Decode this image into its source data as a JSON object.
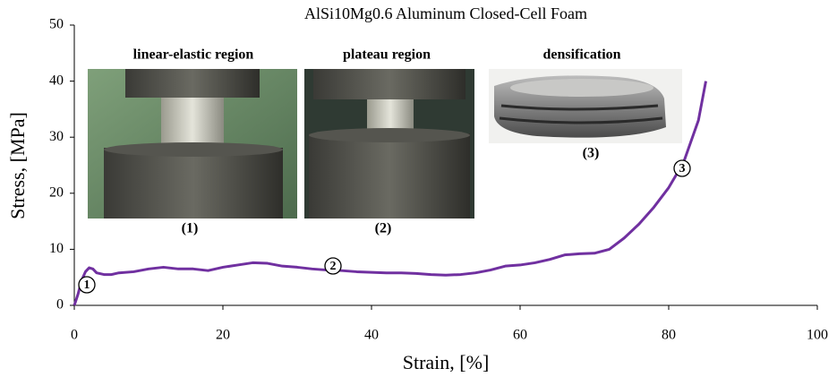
{
  "chart_data": {
    "type": "line",
    "title": "AlSi10Mg0.6 Aluminum Closed-Cell Foam",
    "xlabel": "Strain, [%]",
    "ylabel": "Stress, [MPa]",
    "xlim": [
      0,
      100
    ],
    "xticks": [
      0,
      20,
      40,
      60,
      80,
      100
    ],
    "ylim": [
      0,
      50
    ],
    "yticks": [
      0,
      10,
      20,
      30,
      40,
      50
    ],
    "x": [
      0,
      0.5,
      1,
      1.5,
      2,
      2.5,
      3,
      4,
      5,
      6,
      8,
      10,
      12,
      14,
      16,
      18,
      20,
      22,
      24,
      26,
      28,
      30,
      32,
      34,
      36,
      38,
      40,
      42,
      44,
      46,
      48,
      50,
      52,
      54,
      56,
      58,
      60,
      62,
      64,
      66,
      68,
      70,
      72,
      74,
      76,
      78,
      80,
      82,
      84,
      85
    ],
    "series": [
      {
        "color": "#7030a0",
        "values": [
          0,
          2,
          4.5,
          6,
          6.7,
          6.5,
          5.8,
          5.5,
          5.5,
          5.8,
          6,
          6.5,
          6.8,
          6.5,
          6.5,
          6.2,
          6.8,
          7.2,
          7.6,
          7.5,
          7,
          6.8,
          6.5,
          6.3,
          6.2,
          6,
          5.9,
          5.8,
          5.8,
          5.7,
          5.5,
          5.4,
          5.5,
          5.8,
          6.3,
          7,
          7.2,
          7.6,
          8.2,
          9,
          9.2,
          9.3,
          10,
          12,
          14.5,
          17.5,
          21,
          25.5,
          33,
          40
        ]
      }
    ],
    "markers": [
      "1",
      "2",
      "3"
    ],
    "insets": [
      {
        "title": "linear-elastic region",
        "caption": "(1)"
      },
      {
        "title": "plateau region",
        "caption": "(2)"
      },
      {
        "title": "densification",
        "caption": "(3)"
      }
    ]
  }
}
